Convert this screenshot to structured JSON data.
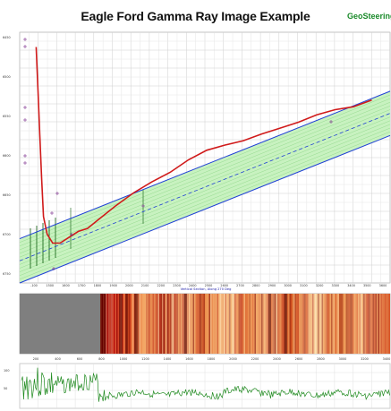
{
  "header": {
    "title": "Eagle Ford Gamma Ray Image Example",
    "brand": "GeoSteering L"
  },
  "colors": {
    "band_fill": "#c8f2c0",
    "band_edge": "#1f3fd6",
    "well_path": "#d01a1a",
    "gamma_line": "#1f8a1f",
    "null_gray": "#7f7f7f"
  },
  "chart_data": [
    {
      "type": "line",
      "x_axis_label": "Vertical Section, Along 270 Deg",
      "x_tick_labels": [
        "-100",
        "1500",
        "1600",
        "1700",
        "1800",
        "1900",
        "2000",
        "2100",
        "2200",
        "2300",
        "2400",
        "2500",
        "2600",
        "2700",
        "2800",
        "2900",
        "3000",
        "3100",
        "3200",
        "3300",
        "3400",
        "3500",
        "3600"
      ],
      "y_tick_labels": [
        "6450",
        "6500",
        "6550",
        "6600",
        "6650",
        "6700",
        "6750"
      ],
      "ylim": [
        6750,
        6450
      ],
      "grid": true,
      "series": [
        {
          "role": "well-path",
          "points": [
            [
              1470,
              6460
            ],
            [
              1480,
              6520
            ],
            [
              1490,
              6580
            ],
            [
              1500,
              6640
            ],
            [
              1510,
              6690
            ],
            [
              1530,
              6714
            ],
            [
              1560,
              6726
            ],
            [
              1600,
              6726
            ],
            [
              1650,
              6718
            ],
            [
              1700,
              6710
            ],
            [
              1750,
              6706
            ],
            [
              1800,
              6696
            ],
            [
              1900,
              6676
            ],
            [
              2000,
              6658
            ],
            [
              2100,
              6643
            ],
            [
              2200,
              6630
            ],
            [
              2300,
              6613
            ],
            [
              2400,
              6600
            ],
            [
              2500,
              6593
            ],
            [
              2600,
              6587
            ],
            [
              2700,
              6578
            ],
            [
              2800,
              6570
            ],
            [
              2900,
              6562
            ],
            [
              3000,
              6552
            ],
            [
              3100,
              6545
            ],
            [
              3200,
              6541
            ],
            [
              3300,
              6532
            ]
          ]
        },
        {
          "role": "dipping-layer-upper",
          "points": [
            [
              1380,
              6720
            ],
            [
              3400,
              6520
            ]
          ]
        },
        {
          "role": "dipping-layer-lower",
          "points": [
            [
              1380,
              6780
            ],
            [
              3400,
              6580
            ]
          ]
        },
        {
          "role": "dipping-layer-mid",
          "points": [
            [
              1380,
              6750
            ],
            [
              3400,
              6550
            ]
          ]
        }
      ]
    },
    {
      "type": "heatmap",
      "description_values": "gamma ray image along wellbore; gray = no data",
      "no_data_range": [
        1380,
        1770
      ],
      "x_tick_labels": [
        "200",
        "400",
        "600",
        "800",
        "1000",
        "1200",
        "1400",
        "1600",
        "1800",
        "2000",
        "2200",
        "2400",
        "2600",
        "2800",
        "3000",
        "3200",
        "3400"
      ]
    },
    {
      "type": "line",
      "role": "gamma-ray-log",
      "x_tick_labels": [
        "200",
        "400",
        "600",
        "800",
        "1000",
        "1200",
        "1400",
        "1600",
        "1800",
        "2000",
        "2200",
        "2400",
        "2600",
        "2800",
        "3000",
        "3200",
        "3400"
      ],
      "y_tick_labels": [
        "100",
        "50"
      ]
    }
  ]
}
